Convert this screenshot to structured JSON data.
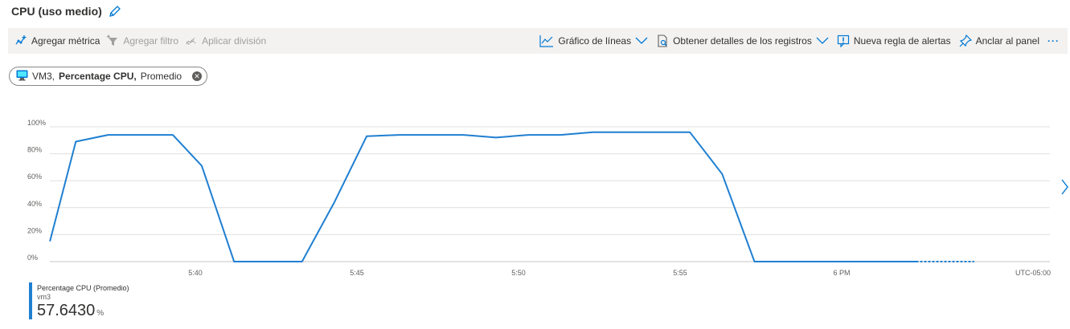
{
  "header": {
    "title": "CPU (uso medio)",
    "edit_icon": "pencil-icon"
  },
  "toolbar": {
    "add_metric": "Agregar métrica",
    "add_filter": "Agregar filtro",
    "apply_split": "Aplicar división",
    "line_chart": "Gráfico de líneas",
    "get_logs": "Obtener detalles de los registros",
    "new_alert": "Nueva regla de alertas",
    "pin": "Anclar al panel",
    "more": "···"
  },
  "metric_pill": {
    "resource": "VM3,",
    "metric": "Percentage CPU,",
    "aggregation": "Promedio",
    "icon": "vm-icon"
  },
  "chart_data": {
    "type": "line",
    "y_ticks": [
      "100%",
      "80%",
      "60%",
      "40%",
      "20%",
      "0%"
    ],
    "ylim": [
      0,
      100
    ],
    "x_ticks": [
      "5:40",
      "5:45",
      "5:50",
      "5:55",
      "6 PM"
    ],
    "x_tick_minutes": [
      40,
      45,
      50,
      55,
      60
    ],
    "timezone_label": "UTC-05:00",
    "grid": true,
    "series": [
      {
        "color": "#1f7fd1",
        "x": [
          35.5,
          36.3,
          37.3,
          38.3,
          39.3,
          40.2,
          41.2,
          42.2,
          43.3,
          44.3,
          45.3,
          46.3,
          47.3,
          48.3,
          49.3,
          50.3,
          51.3,
          52.3,
          53.3,
          54.3,
          55.3,
          56.3,
          57.3,
          58.3,
          59.3,
          60.3,
          61.3,
          62.3
        ],
        "y": [
          15,
          89,
          94,
          94,
          94,
          71,
          0,
          0,
          0,
          44,
          93,
          94,
          94,
          94,
          92,
          94,
          94,
          96,
          96,
          96,
          96,
          65,
          0,
          0,
          0,
          0,
          0,
          0
        ],
        "dashed_tail_x": [
          62.3,
          64.1
        ],
        "dashed_tail_y": [
          0,
          0
        ]
      }
    ]
  },
  "legend": {
    "name": "Percentage CPU (Promedio)",
    "resource": "vm3",
    "value": "57.6430",
    "unit": "%"
  }
}
